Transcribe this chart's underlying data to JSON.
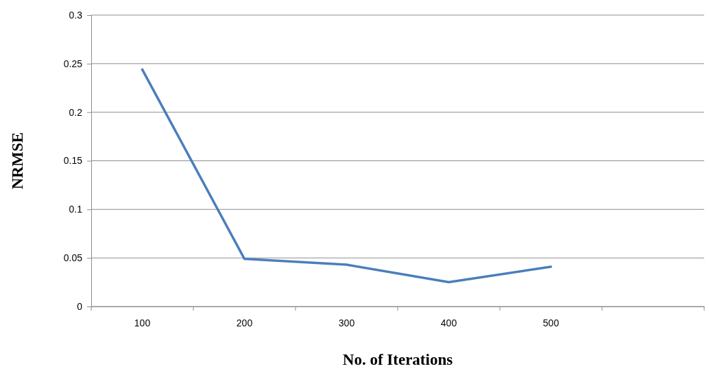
{
  "chart_data": {
    "type": "line",
    "xlabel": "No. of Iterations",
    "ylabel": "NRMSE",
    "categories": [
      "100",
      "200",
      "300",
      "400",
      "500",
      null
    ],
    "series": [
      {
        "color": "#4a7ebb",
        "values": [
          0.244,
          0.049,
          0.043,
          0.025,
          0.041,
          null
        ]
      }
    ],
    "ylim": [
      0,
      0.3
    ],
    "yticks": [
      0,
      0.05,
      0.1,
      0.15,
      0.2,
      0.25,
      0.3
    ],
    "grid": "y",
    "marker": "none",
    "line_style": "solid"
  }
}
